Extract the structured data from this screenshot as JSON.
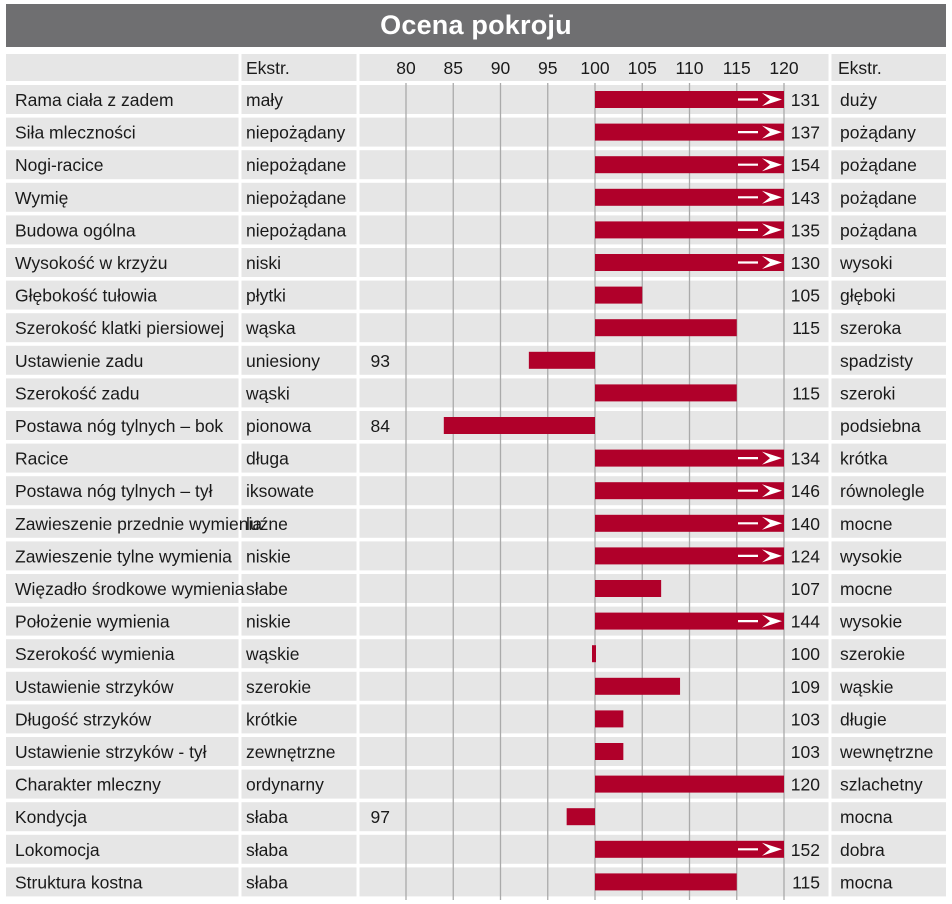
{
  "title": "Ocena pokroju",
  "header": {
    "extr_left": "Ekstr.",
    "extr_right": "Ekstr."
  },
  "colors": {
    "title_bg": "#6f6f71",
    "bar": "#b0002a",
    "row_shade": "#e6e6e6",
    "grid": "#aaaaaa"
  },
  "chart_data": {
    "type": "bar",
    "orientation": "horizontal",
    "baseline": 100,
    "xlim": [
      75,
      120
    ],
    "xticks": [
      80,
      85,
      90,
      95,
      100,
      105,
      110,
      115,
      120
    ],
    "overflow_marker_above": 120,
    "rows": [
      {
        "trait": "Rama ciała z zadem",
        "left": "mały",
        "value": 131,
        "right": "duży"
      },
      {
        "trait": "Siła mleczności",
        "left": "niepożądany",
        "value": 137,
        "right": "pożądany"
      },
      {
        "trait": "Nogi-racice",
        "left": "niepożądane",
        "value": 154,
        "right": "pożądane"
      },
      {
        "trait": "Wymię",
        "left": "niepożądane",
        "value": 143,
        "right": "pożądane"
      },
      {
        "trait": "Budowa ogólna",
        "left": "niepożądana",
        "value": 135,
        "right": "pożądana"
      },
      {
        "trait": "Wysokość w krzyżu",
        "left": "niski",
        "value": 130,
        "right": "wysoki"
      },
      {
        "trait": "Głębokość tułowia",
        "left": "płytki",
        "value": 105,
        "right": "głęboki"
      },
      {
        "trait": "Szerokość klatki piersiowej",
        "left": "wąska",
        "value": 115,
        "right": "szeroka"
      },
      {
        "trait": "Ustawienie zadu",
        "left": "uniesiony",
        "value": 93,
        "right": "spadzisty"
      },
      {
        "trait": "Szerokość zadu",
        "left": "wąski",
        "value": 115,
        "right": "szeroki"
      },
      {
        "trait": "Postawa nóg tylnych –  bok",
        "left": "pionowa",
        "value": 84,
        "right": "podsiebna"
      },
      {
        "trait": "Racice",
        "left": "długa",
        "value": 134,
        "right": "krótka"
      },
      {
        "trait": "Postawa nóg tylnych –  tył",
        "left": "iksowate",
        "value": 146,
        "right": "równolegle"
      },
      {
        "trait": "Zawieszenie przednie wymienia",
        "left": "luźne",
        "value": 140,
        "right": "mocne"
      },
      {
        "trait": "Zawieszenie tylne wymienia",
        "left": "niskie",
        "value": 124,
        "right": "wysokie"
      },
      {
        "trait": "Więzadło środkowe wymienia",
        "left": "słabe",
        "value": 107,
        "right": "mocne"
      },
      {
        "trait": "Położenie wymienia",
        "left": "niskie",
        "value": 144,
        "right": "wysokie"
      },
      {
        "trait": "Szerokość wymienia",
        "left": "wąskie",
        "value": 100,
        "right": "szerokie"
      },
      {
        "trait": "Ustawienie strzyków",
        "left": "szerokie",
        "value": 109,
        "right": "wąskie"
      },
      {
        "trait": "Długość strzyków",
        "left": "krótkie",
        "value": 103,
        "right": "długie"
      },
      {
        "trait": "Ustawienie strzyków - tył",
        "left": "zewnętrzne",
        "value": 103,
        "right": "wewnętrzne"
      },
      {
        "trait": "Charakter mleczny",
        "left": "ordynarny",
        "value": 120,
        "right": "szlachetny"
      },
      {
        "trait": "Kondycja",
        "left": "słaba",
        "value": 97,
        "right": "mocna"
      },
      {
        "trait": "Lokomocja",
        "left": "słaba",
        "value": 152,
        "right": "dobra"
      },
      {
        "trait": "Struktura kostna",
        "left": "słaba",
        "value": 115,
        "right": "mocna"
      }
    ]
  }
}
